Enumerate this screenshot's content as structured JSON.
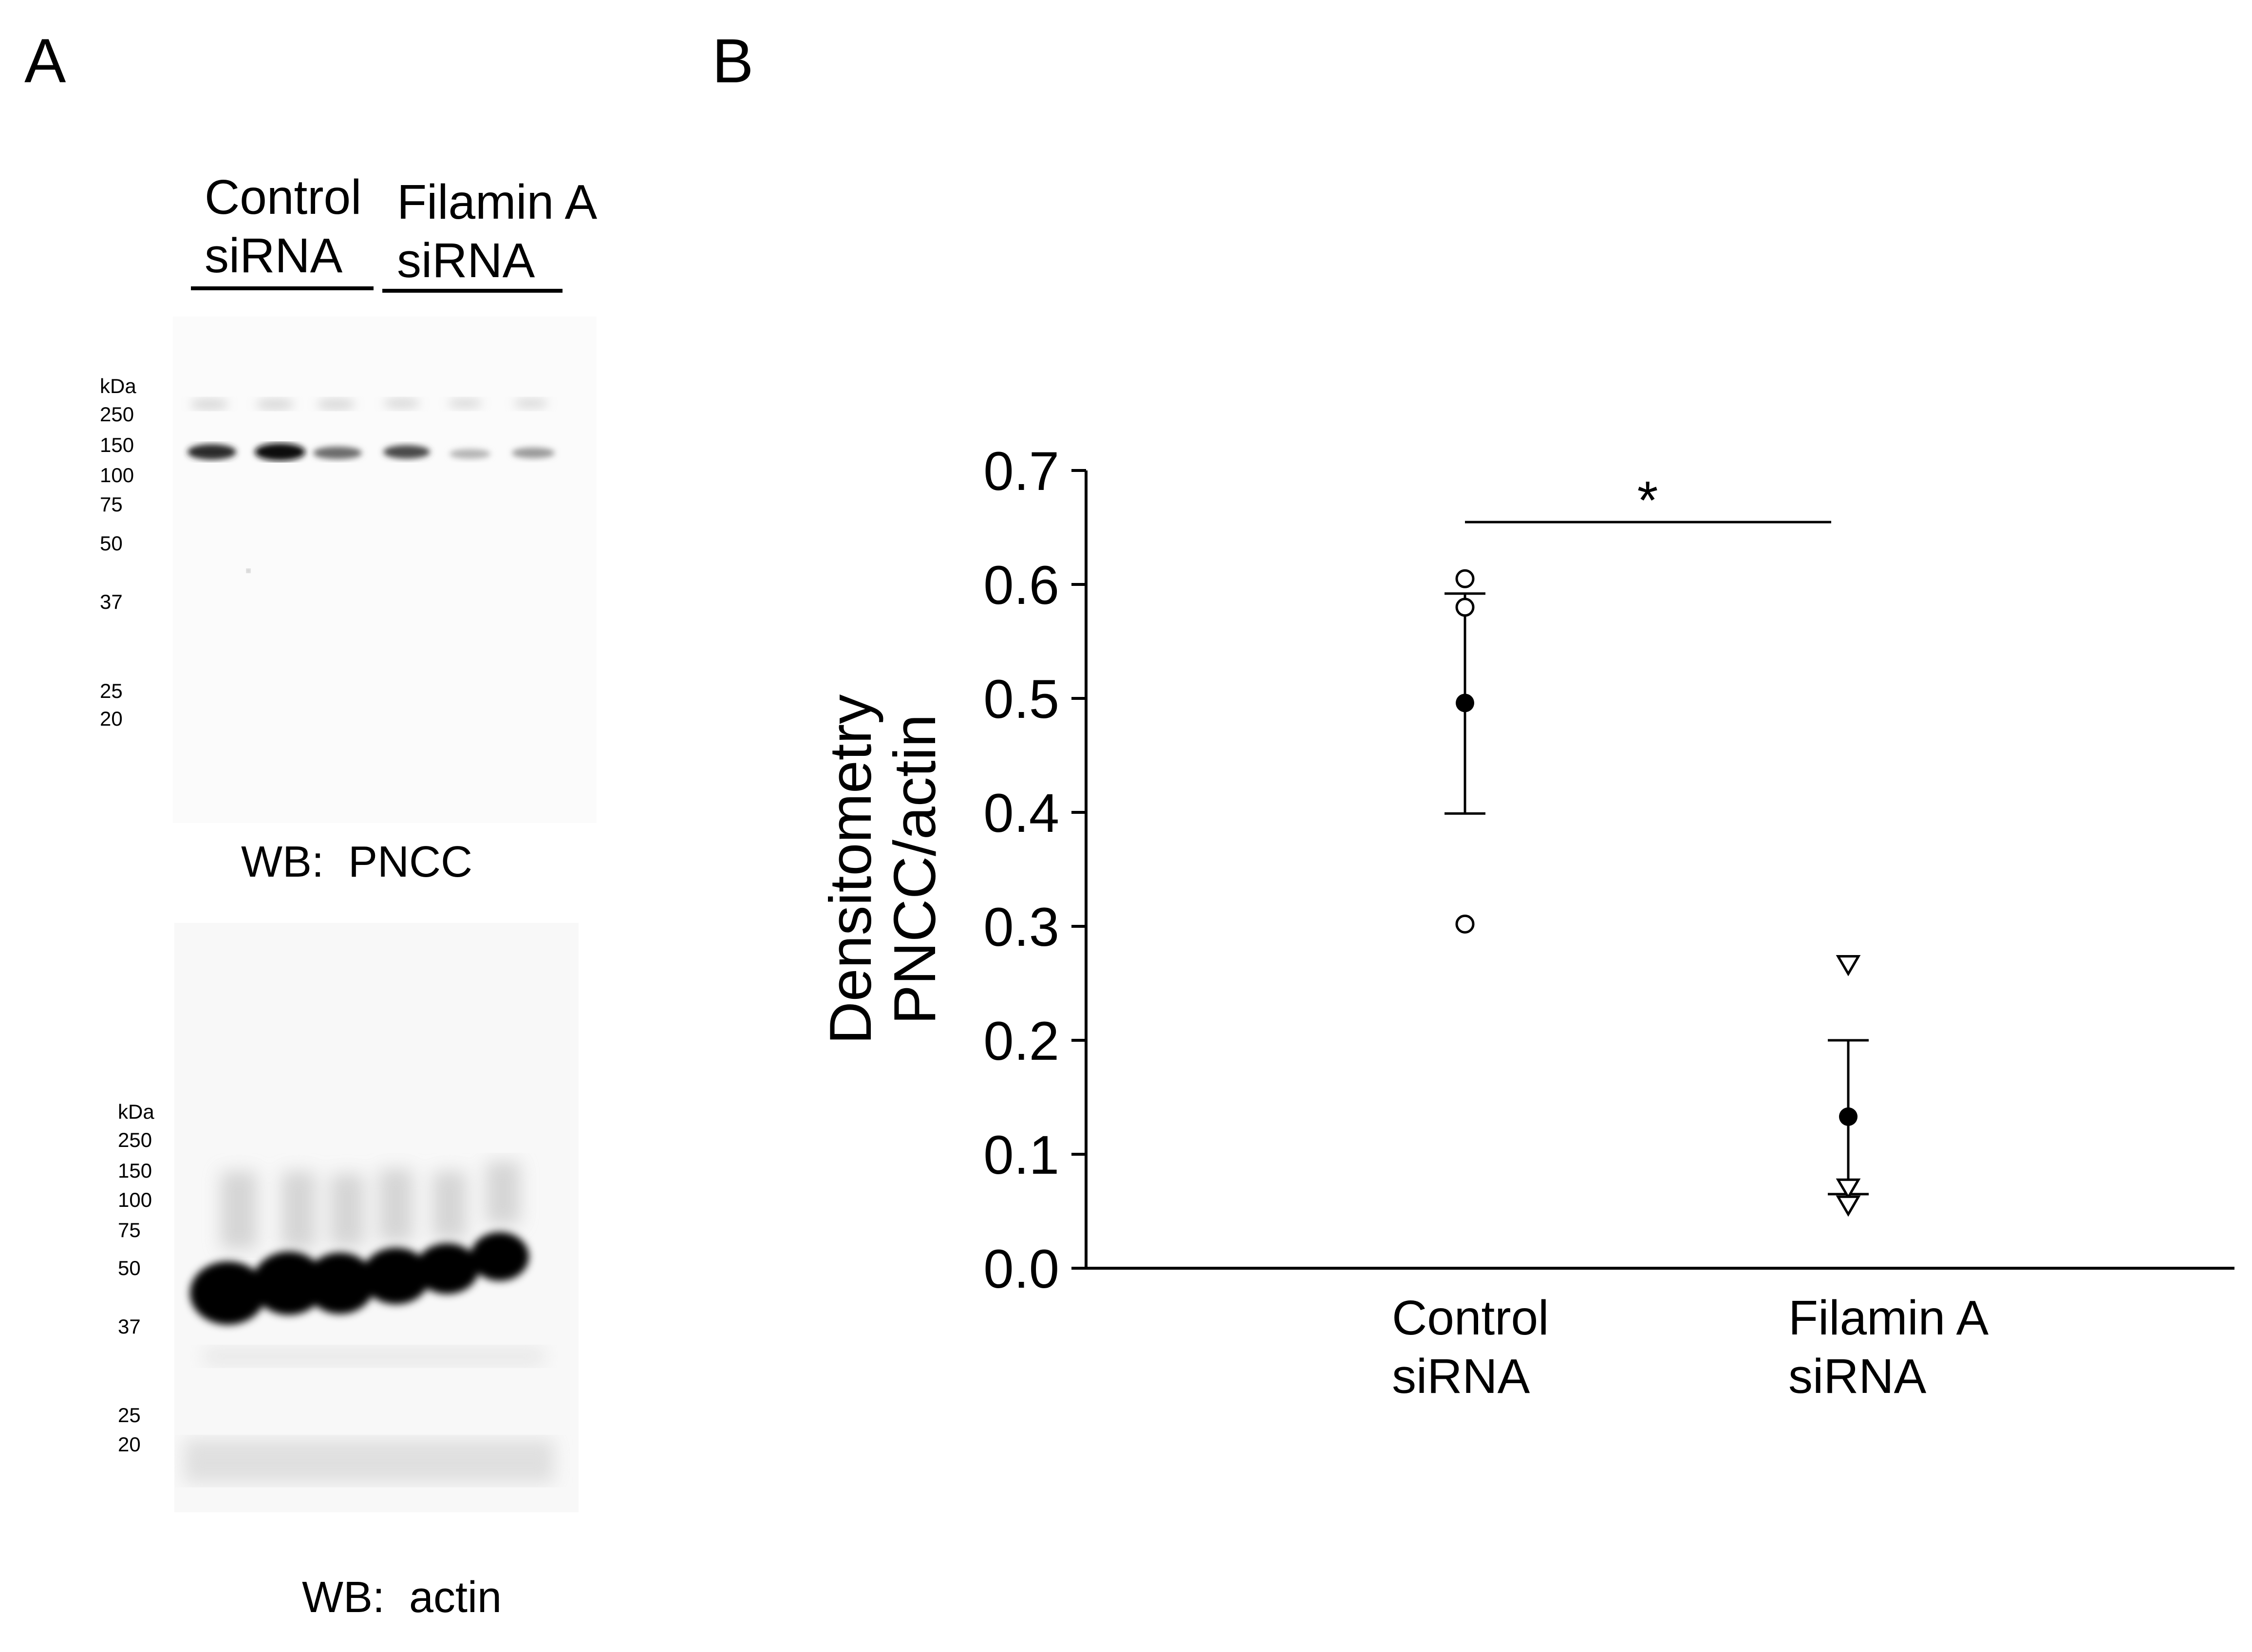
{
  "panels": {
    "a_letter": "A",
    "b_letter": "B"
  },
  "blot": {
    "lanes": [
      {
        "line1": "Control",
        "line2": "siRNA"
      },
      {
        "line1": "Filamin A",
        "line2": "siRNA"
      }
    ],
    "markers_unit": "kDa",
    "markers": [
      "250",
      "150",
      "100",
      "75",
      "50",
      "37",
      "25",
      "20"
    ],
    "pncc_caption": "WB:  PNCC",
    "actin_caption": "WB:  actin"
  },
  "chart_data": {
    "type": "scatter",
    "title": "",
    "ylabel_line1": "Densitometry",
    "ylabel_line2": "PNCC/actin",
    "ylim": [
      0.0,
      0.7
    ],
    "yticks": [
      "0.0",
      "0.1",
      "0.2",
      "0.3",
      "0.4",
      "0.5",
      "0.6",
      "0.7"
    ],
    "categories": [
      {
        "line1": "Control",
        "line2": "siRNA"
      },
      {
        "line1": "Filamin A",
        "line2": "siRNA"
      }
    ],
    "series": [
      {
        "category": "Control siRNA",
        "marker": "circle",
        "points": [
          0.605,
          0.58,
          0.302
        ],
        "mean": 0.496,
        "err_low": 0.399,
        "err_high": 0.592
      },
      {
        "category": "Filamin A siRNA",
        "marker": "triangle-down",
        "points": [
          0.266,
          0.07,
          0.055
        ],
        "mean": 0.133,
        "err_low": 0.065,
        "err_high": 0.2
      }
    ],
    "significance": {
      "between": [
        "Control siRNA",
        "Filamin A siRNA"
      ],
      "label": "*"
    },
    "grid": false,
    "legend": "none"
  }
}
